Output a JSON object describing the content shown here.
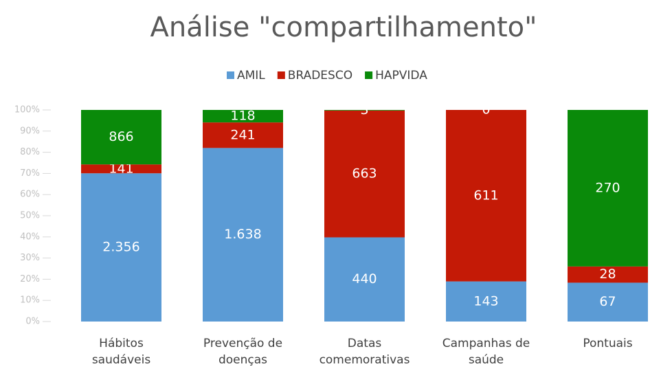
{
  "chart_data": {
    "type": "stacked_bar_100",
    "title": "Análise \"compartilhamento\"",
    "categories": [
      "Hábitos saudáveis",
      "Prevenção de doenças",
      "Datas comemorativas",
      "Campanhas de saúde",
      "Pontuais"
    ],
    "series": [
      {
        "name": "AMIL",
        "color": "#5b9bd5",
        "values": [
          2356,
          1638,
          440,
          143,
          67
        ],
        "value_labels": [
          "2.356",
          "1.638",
          "440",
          "143",
          "67"
        ]
      },
      {
        "name": "BRADESCO",
        "color": "#c41a06",
        "values": [
          141,
          241,
          663,
          611,
          28
        ]
      },
      {
        "name": "HAPVIDA",
        "color": "#0a8a0a",
        "values": [
          866,
          118,
          3,
          0,
          270
        ]
      }
    ],
    "ylim": [
      0,
      100
    ],
    "yticks": [
      {
        "value": 0,
        "label": "0%"
      },
      {
        "value": 10,
        "label": "10%"
      },
      {
        "value": 20,
        "label": "20%"
      },
      {
        "value": 30,
        "label": "30%"
      },
      {
        "value": 40,
        "label": "40%"
      },
      {
        "value": 50,
        "label": "50%"
      },
      {
        "value": 60,
        "label": "60%"
      },
      {
        "value": 70,
        "label": "70%"
      },
      {
        "value": 80,
        "label": "80%"
      },
      {
        "value": 90,
        "label": "90%"
      },
      {
        "value": 100,
        "label": "100%"
      }
    ],
    "legend": "top"
  }
}
